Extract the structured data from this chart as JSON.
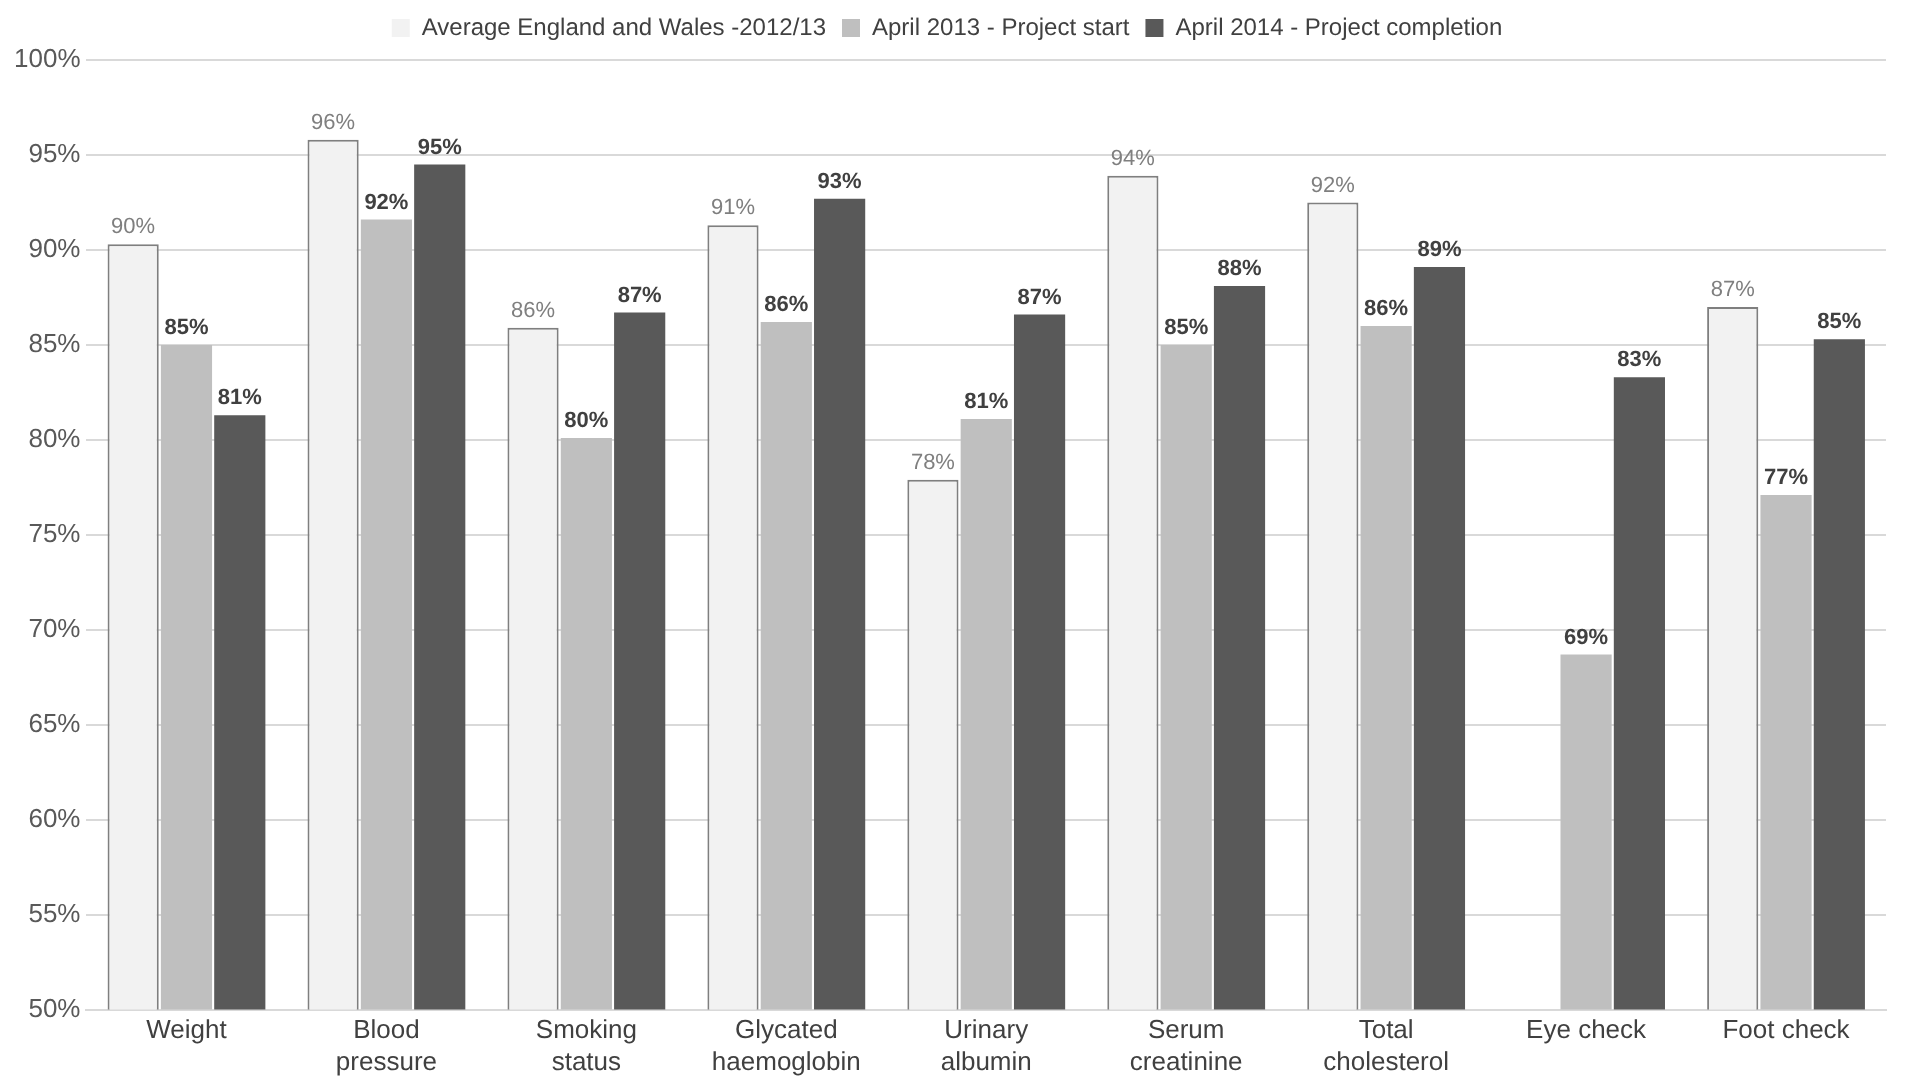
{
  "chart_data": {
    "type": "bar",
    "categories": [
      "Weight",
      "Blood\npressure",
      "Smoking\nstatus",
      "Glycated\nhaemoglobin",
      "Urinary\nalbumin",
      "Serum\ncreatinine",
      "Total\ncholesterol",
      "Eye check",
      "Foot check"
    ],
    "series": [
      {
        "name": "Average England and Wales -2012/13",
        "color": "#f2f2f2",
        "values": [
          90.3,
          95.8,
          85.9,
          91.3,
          77.9,
          93.9,
          92.5,
          null,
          87.0
        ],
        "value_labels": [
          "90%",
          "96%",
          "86%",
          "91%",
          "78%",
          "94%",
          "92%",
          null,
          "87%"
        ]
      },
      {
        "name": "April 2013 - Project start",
        "color": "#bfbfbf",
        "values": [
          85.0,
          91.6,
          80.1,
          86.2,
          81.1,
          85.0,
          86.0,
          68.7,
          77.1
        ],
        "value_labels": [
          "85%",
          "92%",
          "80%",
          "86%",
          "81%",
          "85%",
          "86%",
          "69%",
          "77%"
        ]
      },
      {
        "name": "April 2014 - Project completion",
        "color": "#595959",
        "values": [
          81.3,
          94.5,
          86.7,
          92.7,
          86.6,
          88.1,
          89.1,
          83.3,
          85.3
        ],
        "value_labels": [
          "81%",
          "95%",
          "87%",
          "93%",
          "87%",
          "88%",
          "89%",
          "83%",
          "85%"
        ]
      }
    ],
    "ylim": [
      50,
      100
    ],
    "yticks": [
      {
        "value": 50,
        "label": "50%"
      },
      {
        "value": 55,
        "label": "55%"
      },
      {
        "value": 60,
        "label": "60%"
      },
      {
        "value": 65,
        "label": "65%"
      },
      {
        "value": 70,
        "label": "70%"
      },
      {
        "value": 75,
        "label": "75%"
      },
      {
        "value": 80,
        "label": "80%"
      },
      {
        "value": 85,
        "label": "85%"
      },
      {
        "value": 90,
        "label": "90%"
      },
      {
        "value": 95,
        "label": "95%"
      },
      {
        "value": 100,
        "label": "100%"
      }
    ],
    "grid": "y",
    "legend": "top"
  }
}
